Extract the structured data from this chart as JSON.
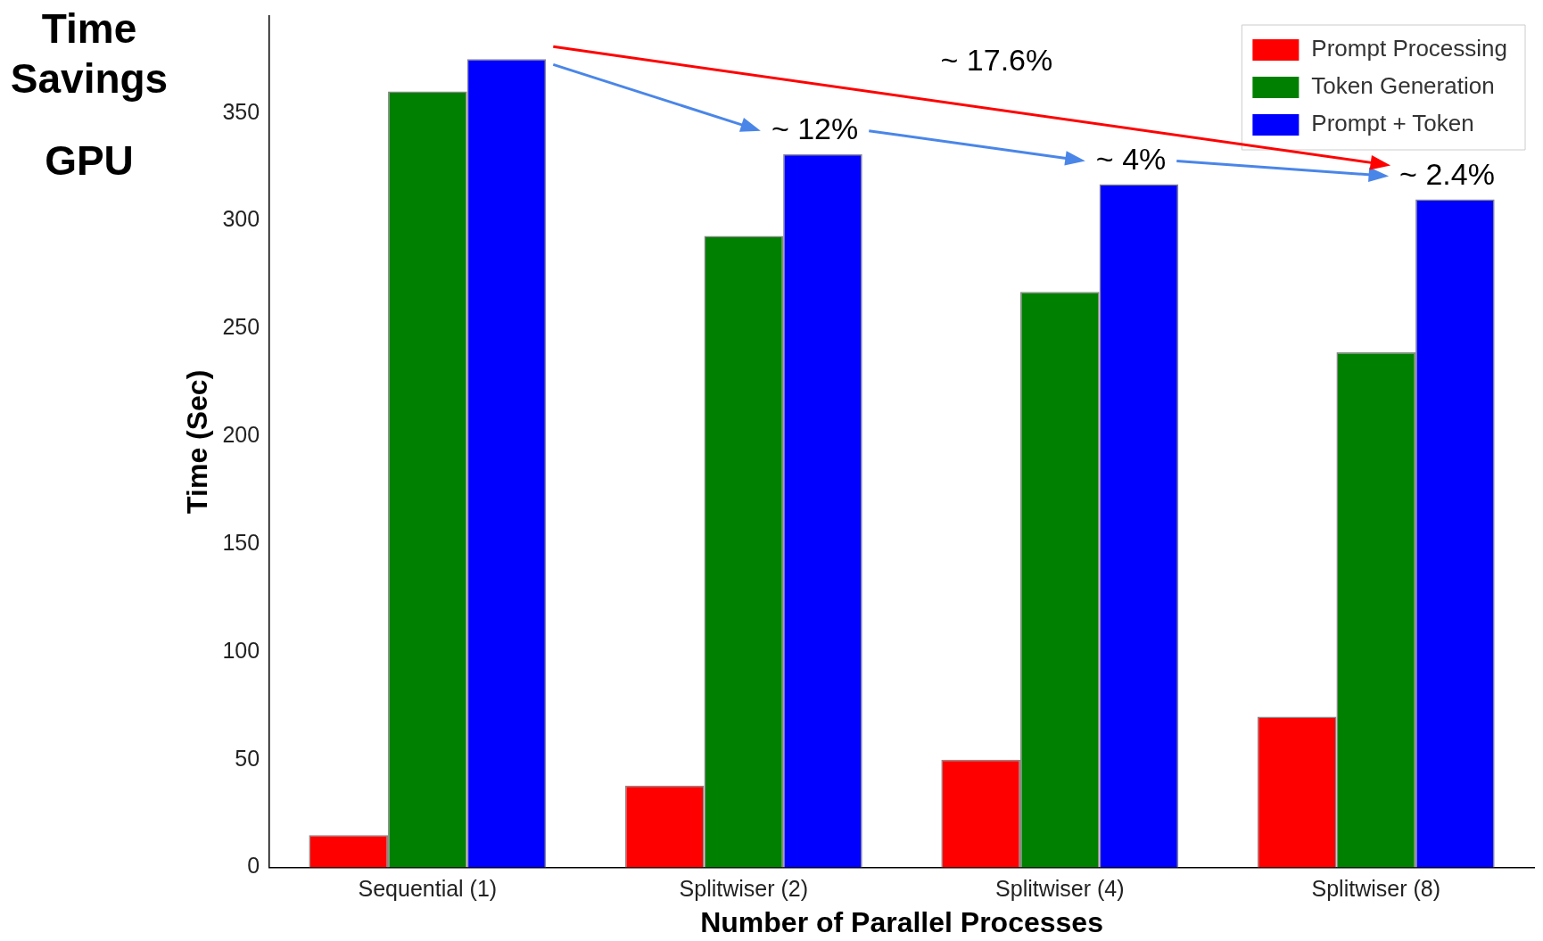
{
  "chart_data": {
    "type": "bar",
    "title": "Time Savings",
    "subtitle": "GPU",
    "xlabel": "Number of Parallel Processes",
    "ylabel": "Time (Sec)",
    "categories": [
      "Sequential (1)",
      "Splitwiser (2)",
      "Splitwiser (4)",
      "Splitwiser (8)"
    ],
    "series": [
      {
        "name": "Prompt Processing",
        "color": "#ff0000",
        "values": [
          15,
          38,
          50,
          70
        ]
      },
      {
        "name": "Token Generation",
        "color": "#008000",
        "values": [
          360,
          293,
          267,
          239
        ]
      },
      {
        "name": "Prompt + Token",
        "color": "#0000ff",
        "values": [
          375,
          331,
          317,
          310
        ]
      }
    ],
    "ylim": [
      0,
      395
    ],
    "yticks": [
      0,
      50,
      100,
      150,
      200,
      250,
      300,
      350
    ],
    "grid": false,
    "legend": "top right",
    "annotations": [
      "~ 12%",
      "~ 4%",
      "~ 2.4%",
      "~ 17.6%"
    ]
  }
}
